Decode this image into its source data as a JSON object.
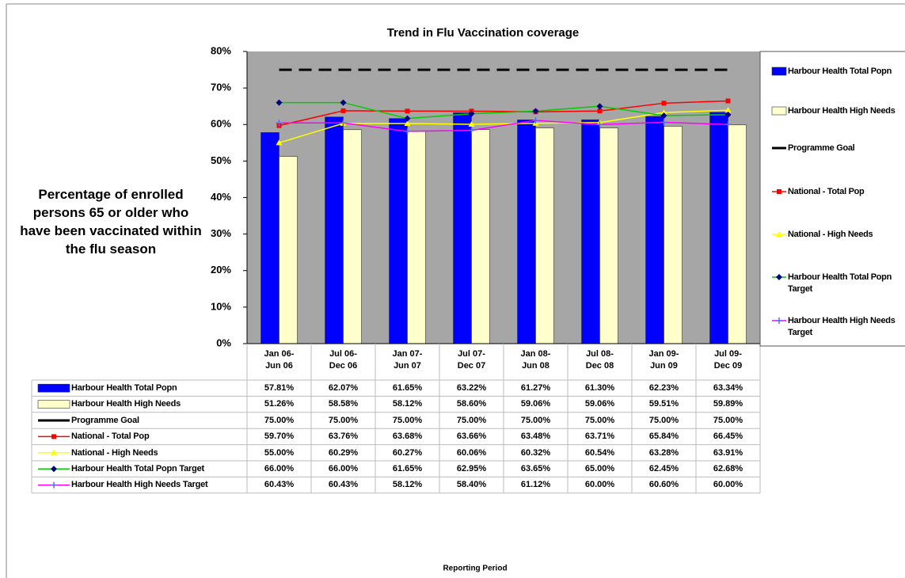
{
  "chart_data": {
    "type": "combo",
    "title": "Trend in Flu Vaccination coverage",
    "y_label": "Percentage of enrolled persons 65 or older who have been vaccinated within the flu season",
    "x_label": "Reporting Period",
    "categories": [
      "Jan 06-Jun 06",
      "Jul 06-Dec 06",
      "Jan 07-Jun 07",
      "Jul 07-Dec 07",
      "Jan 08-Jun 08",
      "Jul 08-Dec 08",
      "Jan 09-Jun 09",
      "Jul 09-Dec 09"
    ],
    "ylim": [
      0,
      80
    ],
    "yticks": [
      {
        "value": 0,
        "label": "0%"
      },
      {
        "value": 10,
        "label": "10%"
      },
      {
        "value": 20,
        "label": "20%"
      },
      {
        "value": 30,
        "label": "30%"
      },
      {
        "value": 40,
        "label": "40%"
      },
      {
        "value": 50,
        "label": "50%"
      },
      {
        "value": 60,
        "label": "60%"
      },
      {
        "value": 70,
        "label": "70%"
      },
      {
        "value": 80,
        "label": "80%"
      }
    ],
    "grid": false,
    "legend": "right",
    "series": [
      {
        "name": "Harbour Health Total Popn",
        "type": "bar",
        "color": "#0000ff",
        "values": [
          57.81,
          62.07,
          61.65,
          63.22,
          61.27,
          61.3,
          62.23,
          63.34
        ],
        "value_labels": [
          "57.81%",
          "62.07%",
          "61.65%",
          "63.22%",
          "61.27%",
          "61.30%",
          "62.23%",
          "63.34%"
        ]
      },
      {
        "name": "Harbour Health High Needs",
        "type": "bar",
        "color": "#ffffcc",
        "values": [
          51.26,
          58.58,
          58.12,
          58.6,
          59.06,
          59.06,
          59.51,
          59.89
        ],
        "value_labels": [
          "51.26%",
          "58.58%",
          "58.12%",
          "58.60%",
          "59.06%",
          "59.06%",
          "59.51%",
          "59.89%"
        ]
      },
      {
        "name": "Programme Goal",
        "type": "line",
        "color": "#000000",
        "dash": true,
        "values": [
          75,
          75,
          75,
          75,
          75,
          75,
          75,
          75
        ],
        "value_labels": [
          "75.00%",
          "75.00%",
          "75.00%",
          "75.00%",
          "75.00%",
          "75.00%",
          "75.00%",
          "75.00%"
        ]
      },
      {
        "name": "National - Total Pop",
        "type": "line",
        "color": "#ff0000",
        "marker": "square",
        "values": [
          59.7,
          63.76,
          63.68,
          63.66,
          63.48,
          63.71,
          65.84,
          66.45
        ],
        "value_labels": [
          "59.70%",
          "63.76%",
          "63.68%",
          "63.66%",
          "63.48%",
          "63.71%",
          "65.84%",
          "66.45%"
        ]
      },
      {
        "name": "National - High Needs",
        "type": "line",
        "color": "#ffff00",
        "marker": "triangle",
        "values": [
          55.0,
          60.29,
          60.27,
          60.06,
          60.32,
          60.54,
          63.28,
          63.91
        ],
        "value_labels": [
          "55.00%",
          "60.29%",
          "60.27%",
          "60.06%",
          "60.32%",
          "60.54%",
          "63.28%",
          "63.91%"
        ]
      },
      {
        "name": "Harbour Health Total Popn Target",
        "type": "line",
        "color": "#00cc00",
        "marker": "diamond",
        "marker_color": "#000080",
        "values": [
          66.0,
          66.0,
          61.65,
          62.95,
          63.65,
          65.0,
          62.45,
          62.68
        ],
        "value_labels": [
          "66.00%",
          "66.00%",
          "61.65%",
          "62.95%",
          "63.65%",
          "65.00%",
          "62.45%",
          "62.68%"
        ]
      },
      {
        "name": "Harbour Health High Needs Target",
        "type": "line",
        "color": "#ff00ff",
        "marker": "plus",
        "marker_color": "#6666ff",
        "values": [
          60.43,
          60.43,
          58.12,
          58.4,
          61.12,
          60.0,
          60.6,
          60.0
        ],
        "value_labels": [
          "60.43%",
          "60.43%",
          "58.12%",
          "58.40%",
          "61.12%",
          "60.00%",
          "60.60%",
          "60.00%"
        ]
      }
    ]
  }
}
